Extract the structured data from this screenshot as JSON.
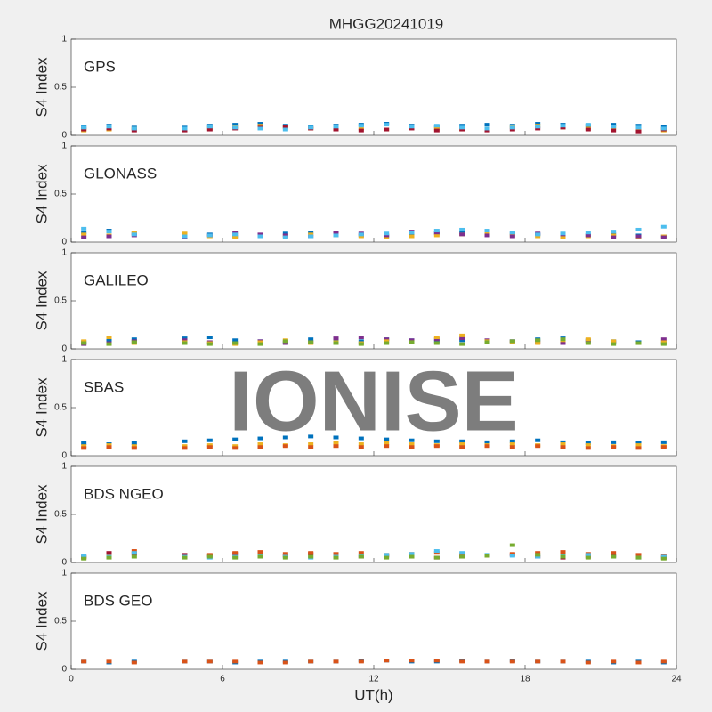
{
  "chart_data": [
    {
      "type": "scatter",
      "title": "MHGG20241019",
      "label": "GPS",
      "ylabel": "S4 Index",
      "xlim": [
        0,
        24
      ],
      "ylim": [
        0,
        1
      ],
      "yticks": [
        0,
        0.5,
        1
      ],
      "x": [
        0.5,
        1.5,
        2.5,
        3.5,
        4.5,
        5.5,
        6.5,
        7.5,
        8.5,
        9.5,
        10.5,
        11.5,
        12.5,
        13.5,
        14.5,
        15.5,
        16.5,
        17.5,
        18.5,
        19.5,
        20.5,
        21.5,
        22.5,
        23.5
      ],
      "series": [
        {
          "color": "#0072BD",
          "values": [
            0.09,
            0.1,
            0.08,
            null,
            0.08,
            0.1,
            0.11,
            0.12,
            0.1,
            0.09,
            0.1,
            0.11,
            0.12,
            0.1,
            0.09,
            0.1,
            0.11,
            0.1,
            0.12,
            0.11,
            0.1,
            0.11,
            0.1,
            0.09
          ]
        },
        {
          "color": "#EDB120",
          "values": [
            0.05,
            0.06,
            0.07,
            null,
            0.06,
            0.07,
            0.09,
            0.1,
            0.08,
            0.07,
            0.08,
            0.07,
            0.06,
            0.08,
            0.07,
            0.06,
            0.07,
            0.09,
            0.1,
            0.08,
            0.07,
            0.08,
            0.06,
            0.05
          ]
        },
        {
          "color": "#A2142F",
          "values": [
            0.06,
            0.07,
            0.05,
            null,
            0.05,
            0.06,
            0.07,
            0.08,
            0.09,
            0.07,
            0.06,
            0.05,
            0.06,
            0.07,
            0.05,
            0.06,
            0.05,
            0.06,
            0.07,
            0.08,
            0.06,
            0.05,
            0.04,
            0.06
          ]
        },
        {
          "color": "#4DBEEE",
          "values": [
            0.08,
            0.09,
            0.07,
            null,
            0.07,
            0.09,
            0.08,
            0.07,
            0.06,
            0.08,
            0.09,
            0.1,
            0.11,
            0.09,
            0.1,
            0.08,
            0.07,
            0.08,
            0.09,
            0.1,
            0.11,
            0.09,
            0.08,
            0.07
          ]
        }
      ]
    },
    {
      "type": "scatter",
      "label": "GLONASS",
      "ylabel": "S4 Index",
      "xlim": [
        0,
        24
      ],
      "ylim": [
        0,
        1
      ],
      "yticks": [
        0,
        0.5,
        1
      ],
      "x": [
        0.5,
        1.5,
        2.5,
        3.5,
        4.5,
        5.5,
        6.5,
        7.5,
        8.5,
        9.5,
        10.5,
        11.5,
        12.5,
        13.5,
        14.5,
        15.5,
        16.5,
        17.5,
        18.5,
        19.5,
        20.5,
        21.5,
        22.5,
        23.5
      ],
      "series": [
        {
          "color": "#0072BD",
          "values": [
            0.1,
            0.12,
            0.09,
            null,
            0.07,
            0.08,
            0.06,
            0.07,
            0.09,
            0.1,
            0.08,
            0.07,
            0.06,
            0.08,
            0.09,
            0.1,
            0.11,
            0.09,
            0.08,
            0.06,
            0.07,
            0.08,
            0.07,
            0.06
          ]
        },
        {
          "color": "#EDB120",
          "values": [
            0.08,
            0.07,
            0.1,
            null,
            0.09,
            0.06,
            0.05,
            0.07,
            0.06,
            0.08,
            0.07,
            0.06,
            0.05,
            0.06,
            0.07,
            0.08,
            0.09,
            0.07,
            0.06,
            0.05,
            0.06,
            0.07,
            0.05,
            0.06
          ]
        },
        {
          "color": "#7E2F8E",
          "values": [
            0.05,
            0.06,
            0.07,
            null,
            0.05,
            0.07,
            0.1,
            0.08,
            0.07,
            0.06,
            0.1,
            0.09,
            0.07,
            0.11,
            0.1,
            0.08,
            0.07,
            0.06,
            0.09,
            0.08,
            0.07,
            0.05,
            0.06,
            0.05
          ]
        },
        {
          "color": "#4DBEEE",
          "values": [
            0.14,
            0.11,
            0.08,
            null,
            0.06,
            0.07,
            0.08,
            0.06,
            0.05,
            0.06,
            0.07,
            0.08,
            0.09,
            0.1,
            0.12,
            0.13,
            0.12,
            0.1,
            0.08,
            0.09,
            0.1,
            0.11,
            0.13,
            0.16
          ]
        }
      ]
    },
    {
      "type": "scatter",
      "label": "GALILEO",
      "ylabel": "S4 Index",
      "xlim": [
        0,
        24
      ],
      "ylim": [
        0,
        1
      ],
      "yticks": [
        0,
        0.5,
        1
      ],
      "x": [
        0.5,
        1.5,
        2.5,
        3.5,
        4.5,
        5.5,
        6.5,
        7.5,
        8.5,
        9.5,
        10.5,
        11.5,
        12.5,
        13.5,
        14.5,
        15.5,
        16.5,
        17.5,
        18.5,
        19.5,
        20.5,
        21.5,
        22.5,
        23.5
      ],
      "series": [
        {
          "color": "#0072BD",
          "values": [
            0.07,
            0.09,
            0.1,
            null,
            0.11,
            0.12,
            0.09,
            0.08,
            0.07,
            0.1,
            0.09,
            0.08,
            0.1,
            0.09,
            0.08,
            0.09,
            0.07,
            0.08,
            0.1,
            0.11,
            0.09,
            0.08,
            0.07,
            0.06
          ]
        },
        {
          "color": "#7E2F8E",
          "values": [
            0.05,
            0.06,
            0.08,
            null,
            0.09,
            0.07,
            0.06,
            0.08,
            0.06,
            0.07,
            0.11,
            0.12,
            0.1,
            0.09,
            0.1,
            0.11,
            0.09,
            0.08,
            0.07,
            0.06,
            0.08,
            0.07,
            0.06,
            0.1
          ]
        },
        {
          "color": "#EDB120",
          "values": [
            0.08,
            0.12,
            0.06,
            null,
            0.07,
            0.06,
            0.05,
            0.07,
            0.09,
            0.06,
            0.07,
            0.06,
            0.08,
            0.07,
            0.12,
            0.14,
            0.08,
            0.07,
            0.06,
            0.09,
            0.1,
            0.08,
            0.06,
            0.07
          ]
        },
        {
          "color": "#77AC30",
          "values": [
            0.06,
            0.05,
            0.07,
            null,
            0.06,
            0.05,
            0.06,
            0.05,
            0.08,
            0.07,
            0.06,
            0.05,
            0.06,
            0.07,
            0.06,
            0.05,
            0.07,
            0.08,
            0.09,
            0.1,
            0.06,
            0.05,
            0.06,
            0.05
          ]
        }
      ]
    },
    {
      "type": "scatter",
      "label": "SBAS",
      "ylabel": "S4 Index",
      "xlim": [
        0,
        24
      ],
      "ylim": [
        0,
        1
      ],
      "yticks": [
        0,
        0.5,
        1
      ],
      "x": [
        0.5,
        1.5,
        2.5,
        3.5,
        4.5,
        5.5,
        6.5,
        7.5,
        8.5,
        9.5,
        10.5,
        11.5,
        12.5,
        13.5,
        14.5,
        15.5,
        16.5,
        17.5,
        18.5,
        19.5,
        20.5,
        21.5,
        22.5,
        23.5
      ],
      "series": [
        {
          "color": "#0072BD",
          "values": [
            0.13,
            0.12,
            0.13,
            null,
            0.15,
            0.16,
            0.17,
            0.18,
            0.19,
            0.2,
            0.19,
            0.18,
            0.17,
            0.16,
            0.15,
            0.15,
            0.14,
            0.15,
            0.16,
            0.14,
            0.13,
            0.14,
            0.13,
            0.14
          ]
        },
        {
          "color": "#EDB120",
          "values": [
            0.1,
            0.11,
            0.1,
            null,
            0.1,
            0.11,
            0.1,
            0.12,
            0.11,
            0.12,
            0.13,
            0.12,
            0.13,
            0.12,
            0.11,
            0.12,
            0.11,
            0.12,
            0.11,
            0.12,
            0.11,
            0.1,
            0.11,
            0.1
          ]
        },
        {
          "color": "#D95319",
          "values": [
            0.08,
            0.09,
            0.08,
            null,
            0.08,
            0.09,
            0.08,
            0.09,
            0.1,
            0.09,
            0.1,
            0.09,
            0.1,
            0.09,
            0.1,
            0.09,
            0.1,
            0.09,
            0.1,
            0.09,
            0.08,
            0.09,
            0.08,
            0.09
          ]
        }
      ]
    },
    {
      "type": "scatter",
      "label": "BDS NGEO",
      "ylabel": "S4 Index",
      "xlim": [
        0,
        24
      ],
      "ylim": [
        0,
        1
      ],
      "yticks": [
        0,
        0.5,
        1
      ],
      "x": [
        0.5,
        1.5,
        2.5,
        3.5,
        4.5,
        5.5,
        6.5,
        7.5,
        8.5,
        9.5,
        10.5,
        11.5,
        12.5,
        13.5,
        14.5,
        15.5,
        16.5,
        17.5,
        18.5,
        19.5,
        20.5,
        21.5,
        22.5,
        23.5
      ],
      "series": [
        {
          "color": "#A2142F",
          "values": [
            0.06,
            0.1,
            0.09,
            null,
            0.08,
            0.07,
            0.09,
            0.08,
            0.07,
            0.09,
            0.08,
            0.06,
            0.07,
            0.06,
            0.05,
            0.06,
            0.07,
            0.08,
            0.06,
            0.05,
            0.06,
            0.07,
            0.06,
            0.05
          ]
        },
        {
          "color": "#D95319",
          "values": [
            0.05,
            0.07,
            0.12,
            null,
            0.06,
            0.08,
            0.1,
            0.11,
            0.09,
            0.1,
            0.09,
            0.1,
            0.08,
            0.09,
            0.1,
            0.08,
            0.07,
            0.09,
            0.1,
            0.11,
            0.09,
            0.1,
            0.08,
            0.07
          ]
        },
        {
          "color": "#4DBEEE",
          "values": [
            0.07,
            0.06,
            0.1,
            null,
            0.06,
            0.05,
            0.06,
            0.07,
            0.06,
            0.05,
            0.06,
            0.07,
            0.08,
            0.09,
            0.12,
            0.1,
            0.08,
            0.07,
            0.06,
            0.07,
            0.08,
            0.06,
            0.05,
            0.06
          ]
        },
        {
          "color": "#77AC30",
          "values": [
            0.04,
            0.05,
            0.06,
            null,
            0.05,
            0.06,
            0.05,
            0.06,
            0.05,
            0.06,
            0.05,
            0.06,
            0.05,
            0.06,
            0.05,
            0.06,
            0.07,
            0.18,
            0.08,
            0.06,
            0.05,
            0.06,
            0.05,
            0.04
          ]
        }
      ]
    },
    {
      "type": "scatter",
      "label": "BDS GEO",
      "ylabel": "S4 Index",
      "xlabel": "UT(h)",
      "xlim": [
        0,
        24
      ],
      "ylim": [
        0,
        1
      ],
      "yticks": [
        0,
        0.5,
        1
      ],
      "xticks": [
        0,
        6,
        12,
        18,
        24
      ],
      "x": [
        0.5,
        1.5,
        2.5,
        3.5,
        4.5,
        5.5,
        6.5,
        7.5,
        8.5,
        9.5,
        10.5,
        11.5,
        12.5,
        13.5,
        14.5,
        15.5,
        16.5,
        17.5,
        18.5,
        19.5,
        20.5,
        21.5,
        22.5,
        23.5
      ],
      "series": [
        {
          "color": "#0072BD",
          "values": [
            0.08,
            0.07,
            0.08,
            null,
            0.08,
            0.08,
            0.07,
            0.08,
            0.08,
            0.08,
            0.08,
            0.09,
            0.09,
            0.08,
            0.08,
            0.09,
            0.08,
            0.09,
            0.08,
            0.08,
            0.08,
            0.07,
            0.08,
            0.07
          ]
        },
        {
          "color": "#D95319",
          "values": [
            0.08,
            0.08,
            0.07,
            null,
            0.08,
            0.08,
            0.08,
            0.07,
            0.07,
            0.08,
            0.08,
            0.08,
            0.09,
            0.09,
            0.09,
            0.08,
            0.08,
            0.08,
            0.08,
            0.08,
            0.07,
            0.08,
            0.07,
            0.08
          ]
        }
      ]
    }
  ],
  "watermark": "IONISE"
}
